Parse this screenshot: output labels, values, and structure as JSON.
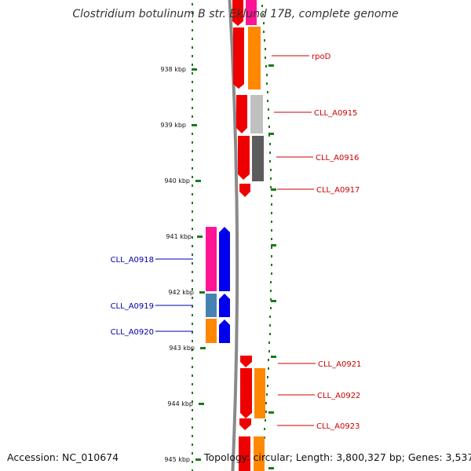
{
  "title": "Clostridium botulinum B str. Eklund 17B, complete genome",
  "footer": {
    "accession": "Accession: NC_010674",
    "info": "Topology: circular; Length: 3,800,327 bp; Genes: 3,537"
  },
  "colors": {
    "backbone": "#8a8a8a",
    "tick": "#1a7a1a",
    "forward_label": "#cc0000",
    "reverse_label": "#0000aa",
    "red": "#ee0000",
    "orange": "#ff8800",
    "light_gray": "#c0c0c0",
    "dark_gray": "#5c5c5c",
    "magenta": "#ff1493",
    "blue": "#0000ee",
    "steel_blue": "#4682b4"
  },
  "ticks": [
    {
      "label": "938 kbp",
      "kbp": 938
    },
    {
      "label": "939 kbp",
      "kbp": 939
    },
    {
      "label": "940 kbp",
      "kbp": 940
    },
    {
      "label": "941 kbp",
      "kbp": 941
    },
    {
      "label": "942 kbp",
      "kbp": 942
    },
    {
      "label": "943 kbp",
      "kbp": 943
    },
    {
      "label": "944 kbp",
      "kbp": 944
    },
    {
      "label": "945 kbp",
      "kbp": 945
    }
  ],
  "labels": [
    {
      "text": "rpoD",
      "strand": "forward"
    },
    {
      "text": "CLL_A0915",
      "strand": "forward"
    },
    {
      "text": "CLL_A0916",
      "strand": "forward"
    },
    {
      "text": "CLL_A0917",
      "strand": "forward"
    },
    {
      "text": "CLL_A0918",
      "strand": "reverse"
    },
    {
      "text": "CLL_A0919",
      "strand": "reverse"
    },
    {
      "text": "CLL_A0920",
      "strand": "reverse"
    },
    {
      "text": "CLL_A0921",
      "strand": "forward"
    },
    {
      "text": "CLL_A0922",
      "strand": "forward"
    },
    {
      "text": "CLL_A0923",
      "strand": "forward"
    }
  ]
}
